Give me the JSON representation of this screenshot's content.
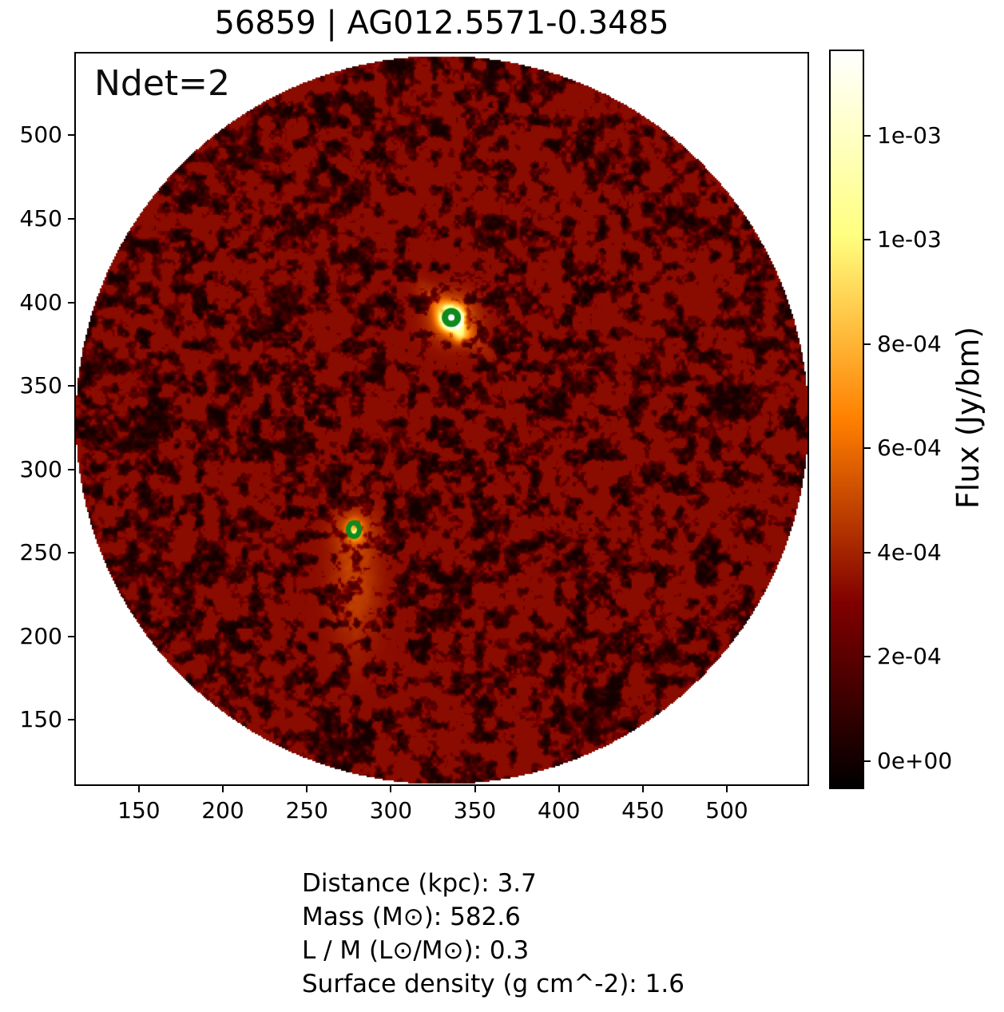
{
  "figure": {
    "title": "56859 | AG012.5571-0.3485",
    "annotation": "Ndet=2",
    "info_lines": [
      "Distance (kpc): 3.7",
      "Mass (M⊙): 582.6",
      "L / M (L⊙/M⊙): 0.3",
      "Surface density (g cm^-2): 1.6"
    ]
  },
  "chart_data": {
    "type": "heatmap",
    "title": "56859 | AG012.5571-0.3485",
    "annotation": "Ndet=2",
    "xlabel": "",
    "ylabel": "",
    "xlim": [
      112.5,
      548
    ],
    "ylim": [
      111.5,
      549
    ],
    "x_ticks": [
      150,
      200,
      250,
      300,
      350,
      400,
      450,
      500
    ],
    "y_ticks": [
      150,
      200,
      250,
      300,
      350,
      400,
      450,
      500
    ],
    "grid": false,
    "colormap": "afmhot (black - dark red - orange - yellow - white)",
    "background_outside_field": "#ffffff",
    "field": {
      "shape": "circle",
      "center": [
        330,
        330
      ],
      "radius": 218,
      "description": "circular masked flux map; mottled dark-red noise (~0 to 3e-04 Jy/bm) on black"
    },
    "sources": [
      {
        "x": 336,
        "y": 391,
        "peak_flux_approx": ">=1.2e-03",
        "appearance": "bright compact source, white-yellow core",
        "marker": "green open circle"
      },
      {
        "x": 278,
        "y": 264,
        "peak_flux_approx": "~5e-04",
        "appearance": "faint compact source, orange core with extended emission below",
        "marker": "green open circle"
      }
    ],
    "marker_color": "#0e8a1e",
    "colorbar": {
      "label": "Flux (Jy/bm)",
      "tick_labels": [
        "0e+00",
        "2e-04",
        "4e-04",
        "6e-04",
        "8e-04",
        "1e-03",
        "1e-03"
      ],
      "tick_values": [
        0,
        0.0002,
        0.0004,
        0.0006,
        0.0008,
        0.001,
        0.0012
      ],
      "vmin": -5.4e-05,
      "vmax": 0.001365
    }
  }
}
